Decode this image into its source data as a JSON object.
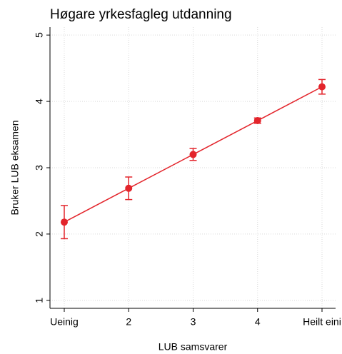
{
  "chart_data": {
    "type": "line",
    "title": "Høgare yrkesfagleg utdanning",
    "xlabel": "LUB samsvarer",
    "ylabel": "Bruker LUB eksamen",
    "categories": [
      "Ueinig",
      "2",
      "3",
      "4",
      "Heilt eini"
    ],
    "series": [
      {
        "name": "Bruker LUB eksamen",
        "color": "#e3242b",
        "values": [
          2.18,
          2.69,
          3.2,
          3.71,
          4.22
        ],
        "errors": [
          0.25,
          0.17,
          0.09,
          0.04,
          0.11
        ]
      }
    ],
    "ylim": [
      0.88,
      5.12
    ],
    "yticks": [
      1,
      2,
      3,
      4,
      5
    ],
    "grid": true
  }
}
